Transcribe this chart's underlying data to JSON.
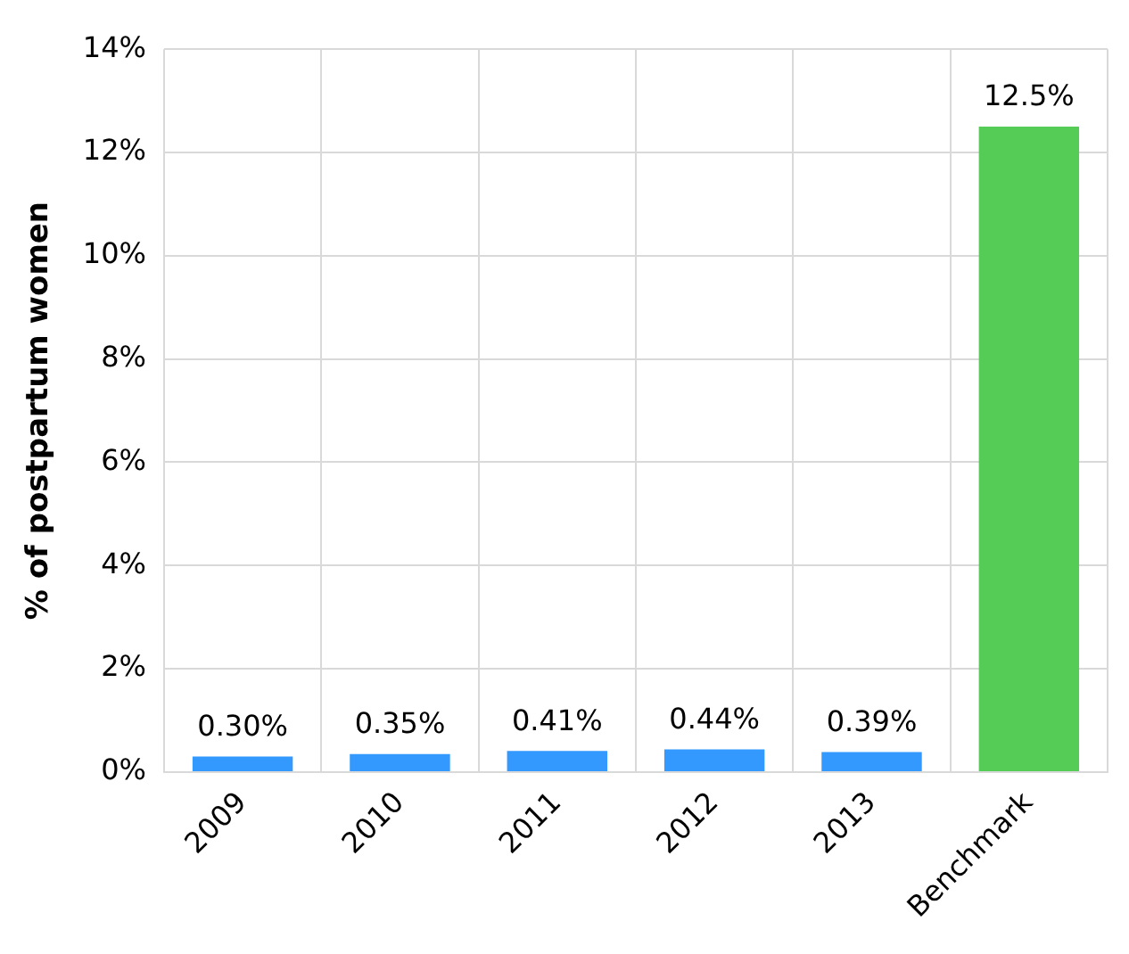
{
  "chart_data": {
    "type": "bar",
    "ylabel": "% of postpartum women",
    "categories": [
      "2009",
      "2010",
      "2011",
      "2012",
      "2013",
      "Benchmark"
    ],
    "values": [
      0.3,
      0.35,
      0.41,
      0.44,
      0.39,
      12.5
    ],
    "colors": [
      "#3399ff",
      "#3399ff",
      "#3399ff",
      "#3399ff",
      "#3399ff",
      "#55cc55"
    ],
    "value_labels": [
      "0.30%",
      "0.35%",
      "0.41%",
      "0.44%",
      "0.39%",
      "12.5%"
    ],
    "ylim": [
      0,
      14
    ],
    "yticks": [
      {
        "value": 0,
        "label": "0%"
      },
      {
        "value": 2,
        "label": "2%"
      },
      {
        "value": 4,
        "label": "4%"
      },
      {
        "value": 6,
        "label": "6%"
      },
      {
        "value": 8,
        "label": "8%"
      },
      {
        "value": 10,
        "label": "10%"
      },
      {
        "value": 12,
        "label": "12%"
      },
      {
        "value": 14,
        "label": "14%"
      }
    ],
    "grid": true
  }
}
